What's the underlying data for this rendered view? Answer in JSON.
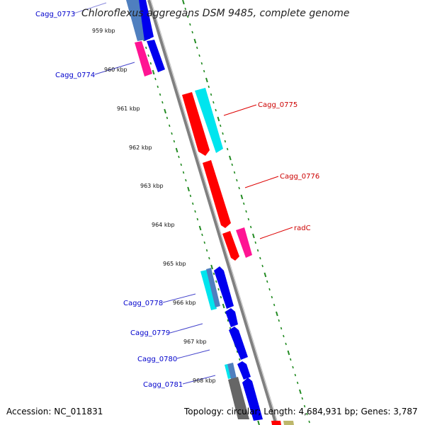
{
  "title": "Chloroflexus aggregans DSM 9485, complete genome",
  "footer": {
    "accession": "Accession: NC_011831",
    "summary": "Topology: circular; Length: 4,684,931 bp; Genes: 3,787"
  },
  "colors": {
    "backbone": "#808080",
    "tick": "#228b22",
    "blue_label": "#0000cc",
    "red_label": "#cc0000",
    "blue": "#0000ee",
    "red": "#ff0000",
    "cyan": "#00e5ee",
    "magenta": "#ff1493"
  },
  "scale_labels": [
    "959 kbp",
    "960 kbp",
    "961 kbp",
    "962 kbp",
    "963 kbp",
    "964 kbp",
    "965 kbp",
    "966 kbp",
    "967 kbp",
    "968 kbp"
  ],
  "genes": {
    "left": [
      "Cagg_0773",
      "Cagg_0774",
      "Cagg_0778",
      "Cagg_0779",
      "Cagg_0780",
      "Cagg_0781"
    ],
    "right": [
      "Cagg_0775",
      "Cagg_0776",
      "radC"
    ]
  }
}
